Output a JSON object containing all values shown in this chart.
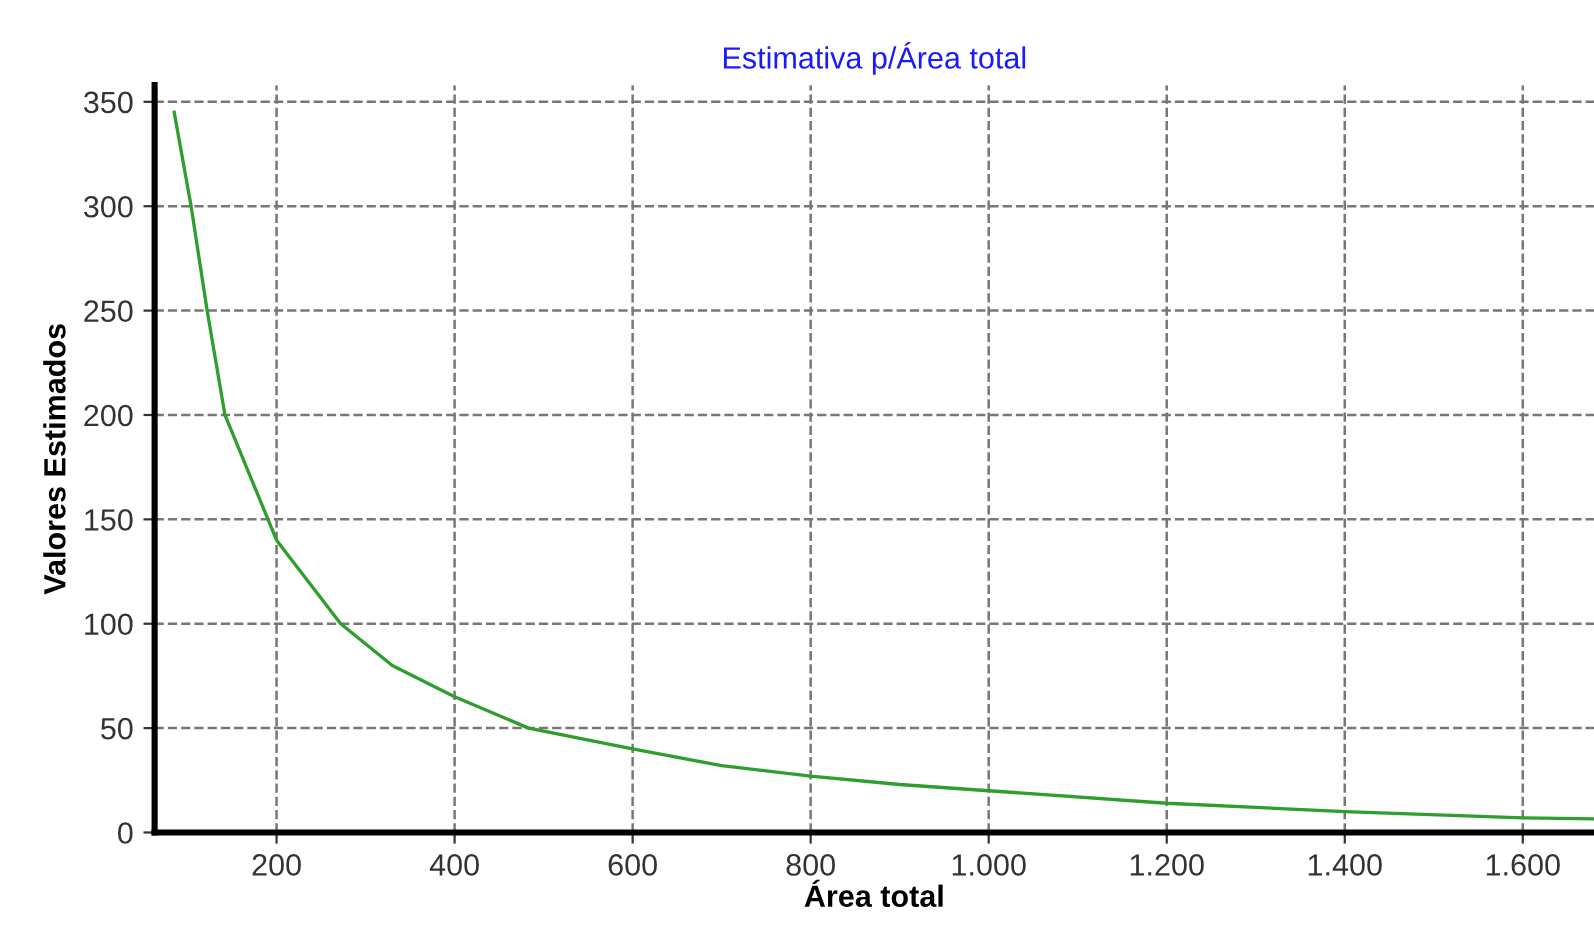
{
  "chart_data": {
    "type": "line",
    "title": "Estimativa p/Área total",
    "xlabel": "Área total",
    "ylabel": "Valores Estimados",
    "xlim": [
      63,
      1680
    ],
    "ylim": [
      0,
      358
    ],
    "xticks": [
      {
        "value": 200,
        "label": "200"
      },
      {
        "value": 400,
        "label": "400"
      },
      {
        "value": 600,
        "label": "600"
      },
      {
        "value": 800,
        "label": "800"
      },
      {
        "value": 1000,
        "label": "1.000"
      },
      {
        "value": 1200,
        "label": "1.200"
      },
      {
        "value": 1400,
        "label": "1.400"
      },
      {
        "value": 1600,
        "label": "1.600"
      }
    ],
    "yticks": [
      0,
      50,
      100,
      150,
      200,
      250,
      300,
      350
    ],
    "grid": true,
    "legend": false,
    "marker": "none",
    "line_style": "solid",
    "series": [
      {
        "color": "#2e9e2e",
        "x": [
          85,
          104,
          122,
          142,
          200,
          272,
          330,
          400,
          483,
          600,
          700,
          800,
          900,
          1000,
          1200,
          1400,
          1600,
          1680
        ],
        "values": [
          345,
          300,
          250,
          200,
          140,
          100,
          80,
          65,
          50,
          40,
          32,
          27,
          23,
          20,
          14,
          10,
          7,
          6.5
        ]
      }
    ]
  }
}
